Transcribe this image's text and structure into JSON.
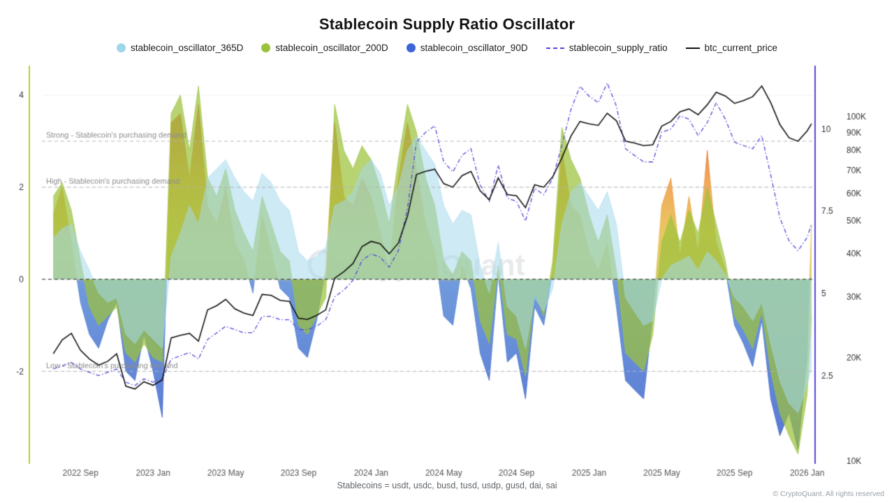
{
  "title": "Stablecoin Supply Ratio Oscillator",
  "watermark": "CryptoQuant",
  "legend": [
    {
      "label": "stablecoin_oscillator_365D",
      "color": "#9fd6ea",
      "marker": "dot"
    },
    {
      "label": "stablecoin_oscillator_200D",
      "color": "#9cc23c",
      "marker": "dot"
    },
    {
      "label": "stablecoin_oscillator_90D",
      "color": "#3d64d8",
      "marker": "dot"
    },
    {
      "label": "stablecoin_supply_ratio",
      "color": "#5346d6",
      "marker": "dash-dot-line"
    },
    {
      "label": "btc_current_price",
      "color": "#111111",
      "marker": "line"
    }
  ],
  "footer": {
    "note": "Stablecoins = usdt, usdc, busd, tusd, usdp, gusd, dai, sai",
    "copyright": "© CryptoQuant. All rights reserved"
  },
  "chart_data": {
    "type": "area",
    "subtype": "area oscillators + line overlays (combo, multi-axis)",
    "title": "Stablecoin Supply Ratio Oscillator",
    "x_unit": "decimal_year",
    "x_axis": {
      "range": [
        2022.49,
        2026.03
      ],
      "ticks": [
        {
          "pos": 2022.667,
          "label": "2022 Sep"
        },
        {
          "pos": 2023.0,
          "label": "2023 Jan"
        },
        {
          "pos": 2023.333,
          "label": "2023 May"
        },
        {
          "pos": 2023.667,
          "label": "2023 Sep"
        },
        {
          "pos": 2024.0,
          "label": "2024 Jan"
        },
        {
          "pos": 2024.333,
          "label": "2024 May"
        },
        {
          "pos": 2024.667,
          "label": "2024 Sep"
        },
        {
          "pos": 2025.0,
          "label": "2025 Jan"
        },
        {
          "pos": 2025.333,
          "label": "2025 May"
        },
        {
          "pos": 2025.667,
          "label": "2025 Sep"
        },
        {
          "pos": 2026.0,
          "label": "2026 Jan"
        }
      ]
    },
    "y_axes": {
      "oscillator": {
        "side": "left",
        "min": -3.95,
        "max": 4.55,
        "ticks": [
          4,
          2,
          0,
          -2
        ],
        "axis_line_color": "#b8cc35"
      },
      "supply_ratio": {
        "side": "right_inner",
        "min": -0.1,
        "max": 11.8,
        "ticks": [
          10,
          7.5,
          5,
          2.5
        ],
        "axis_line_color": "#5346d6"
      },
      "btc_price": {
        "side": "right_outer",
        "scale": "log",
        "min": 10000,
        "max": 137000,
        "ticks": [
          {
            "v": 100000,
            "label": "100K"
          },
          {
            "v": 90000,
            "label": "90K"
          },
          {
            "v": 80000,
            "label": "80K"
          },
          {
            "v": 70000,
            "label": "70K"
          },
          {
            "v": 60000,
            "label": "60K"
          },
          {
            "v": 50000,
            "label": "50K"
          },
          {
            "v": 40000,
            "label": "40K"
          },
          {
            "v": 30000,
            "label": "30K"
          },
          {
            "v": 20000,
            "label": "20K"
          },
          {
            "v": 10000,
            "label": "10K"
          }
        ]
      }
    },
    "annotations": [
      {
        "value": 3,
        "label": "Strong - Stablecoin's purchasing demand",
        "style": "dashed-gray"
      },
      {
        "value": 2,
        "label": "High - Stablecoin's purchasing demand",
        "style": "dashed-gray"
      },
      {
        "value": 0,
        "label": "",
        "style": "dashed-black"
      },
      {
        "value": -2,
        "label": "Low - Stablecoin's purchasing demand",
        "style": "dashed-gray"
      }
    ],
    "x": [
      2022.542,
      2022.583,
      2022.625,
      2022.667,
      2022.708,
      2022.75,
      2022.792,
      2022.833,
      2022.875,
      2022.917,
      2022.958,
      2023.0,
      2023.042,
      2023.083,
      2023.125,
      2023.167,
      2023.208,
      2023.25,
      2023.292,
      2023.333,
      2023.375,
      2023.417,
      2023.458,
      2023.5,
      2023.542,
      2023.583,
      2023.625,
      2023.667,
      2023.708,
      2023.75,
      2023.792,
      2023.833,
      2023.875,
      2023.917,
      2023.958,
      2024.0,
      2024.042,
      2024.083,
      2024.125,
      2024.167,
      2024.208,
      2024.25,
      2024.292,
      2024.333,
      2024.375,
      2024.417,
      2024.458,
      2024.5,
      2024.542,
      2024.583,
      2024.625,
      2024.667,
      2024.708,
      2024.75,
      2024.792,
      2024.833,
      2024.875,
      2024.917,
      2024.958,
      2025.0,
      2025.042,
      2025.083,
      2025.125,
      2025.167,
      2025.208,
      2025.25,
      2025.292,
      2025.333,
      2025.375,
      2025.417,
      2025.458,
      2025.5,
      2025.542,
      2025.583,
      2025.625,
      2025.667,
      2025.708,
      2025.75,
      2025.792,
      2025.833,
      2025.875,
      2025.917,
      2025.958,
      2026.0,
      2026.02
    ],
    "series": [
      {
        "name": "stablecoin_oscillator_90D",
        "type": "area",
        "axis": "oscillator",
        "opacity": 0.8,
        "color_scale": [
          [
            4.55,
            "#d8352c"
          ],
          [
            3.2,
            "#e2592b"
          ],
          [
            2.2,
            "#ee9030"
          ],
          [
            1.0,
            "#e5b93d"
          ],
          [
            0.05,
            "#d4bd4a"
          ],
          [
            -0.05,
            "#4d82d4"
          ],
          [
            -3.95,
            "#2d53c6"
          ]
        ],
        "values": [
          1.4,
          2.0,
          0.8,
          -0.5,
          -1.2,
          -1.5,
          -0.9,
          -0.5,
          -2.0,
          -2.2,
          -1.2,
          -2.0,
          -3.0,
          3.4,
          3.6,
          2.2,
          3.8,
          1.6,
          1.2,
          2.0,
          0.8,
          0.4,
          -0.3,
          1.4,
          0.6,
          -0.2,
          -0.4,
          -1.5,
          -1.7,
          -0.9,
          0.2,
          3.4,
          1.8,
          1.6,
          2.2,
          1.8,
          1.0,
          0.2,
          2.2,
          3.4,
          2.4,
          1.2,
          0.6,
          -0.8,
          -1.0,
          0.3,
          -0.2,
          -1.6,
          -2.2,
          0.1,
          -1.8,
          -1.6,
          -2.6,
          -0.6,
          -1.0,
          0.2,
          2.8,
          1.6,
          1.4,
          0.6,
          0.2,
          0.8,
          -0.6,
          -2.2,
          -2.4,
          -2.6,
          -0.8,
          1.6,
          2.2,
          0.5,
          1.8,
          0.6,
          2.8,
          0.8,
          0.2,
          -1.0,
          -1.4,
          -1.9,
          -0.9,
          -2.6,
          -3.4,
          -2.9,
          -3.7,
          -1.7,
          1.2
        ]
      },
      {
        "name": "stablecoin_oscillator_200D",
        "type": "area",
        "axis": "oscillator",
        "color": "#9cc23c",
        "opacity": 0.72,
        "values": [
          1.8,
          2.1,
          1.5,
          0.4,
          -0.6,
          -1.0,
          -0.8,
          -0.6,
          -1.6,
          -1.8,
          -1.4,
          -1.7,
          -1.8,
          3.6,
          4.0,
          2.8,
          4.2,
          2.2,
          1.8,
          2.4,
          1.5,
          1.0,
          0.6,
          1.8,
          1.2,
          0.6,
          0.4,
          -1.0,
          -1.2,
          -0.8,
          -0.4,
          3.8,
          2.8,
          2.4,
          2.9,
          2.6,
          2.0,
          1.2,
          2.6,
          3.8,
          3.2,
          2.2,
          1.6,
          0.4,
          0.1,
          0.6,
          0.4,
          -0.9,
          -1.4,
          0.3,
          -1.2,
          -1.3,
          -2.1,
          -0.3,
          -0.8,
          0.4,
          3.3,
          2.6,
          2.2,
          1.4,
          0.8,
          1.4,
          0.2,
          -1.6,
          -1.8,
          -2.0,
          -1.2,
          0.8,
          1.4,
          0.8,
          1.5,
          1.0,
          2.0,
          1.2,
          0.4,
          -0.8,
          -1.1,
          -1.5,
          -0.7,
          -2.0,
          -2.9,
          -3.4,
          -3.8,
          -2.5,
          -0.8
        ]
      },
      {
        "name": "stablecoin_oscillator_365D",
        "type": "area",
        "axis": "oscillator",
        "color": "#a5d8eb",
        "opacity": 0.55,
        "values": [
          0.9,
          1.1,
          1.2,
          0.6,
          0.2,
          -0.3,
          -0.5,
          -0.4,
          -1.2,
          -1.4,
          -1.1,
          -1.3,
          -1.5,
          0.5,
          1.0,
          1.6,
          1.2,
          2.2,
          2.4,
          2.6,
          2.2,
          1.9,
          1.7,
          2.3,
          2.1,
          1.7,
          1.5,
          0.6,
          0.4,
          0.5,
          0.7,
          1.6,
          1.7,
          1.9,
          2.4,
          2.6,
          2.3,
          1.6,
          2.0,
          2.8,
          3.1,
          2.8,
          2.5,
          1.6,
          1.2,
          1.5,
          1.4,
          0.3,
          -0.3,
          0.8,
          -0.6,
          -0.8,
          -1.5,
          -0.4,
          -0.7,
          -0.2,
          1.2,
          1.9,
          2.1,
          1.8,
          1.5,
          1.9,
          1.2,
          -0.4,
          -0.7,
          -1.0,
          -0.9,
          0.0,
          0.3,
          0.4,
          0.5,
          0.2,
          0.6,
          0.4,
          0.1,
          -0.4,
          -0.6,
          -0.9,
          -0.5,
          -1.4,
          -2.2,
          -2.7,
          -2.9,
          -2.3,
          -1.9
        ]
      },
      {
        "name": "stablecoin_supply_ratio",
        "type": "line",
        "axis": "supply_ratio",
        "color": "#5346d6",
        "dash": "dash-dot",
        "values": [
          2.7,
          2.8,
          2.9,
          2.7,
          2.6,
          2.5,
          2.6,
          2.7,
          2.3,
          2.2,
          2.4,
          2.3,
          2.4,
          3.0,
          3.1,
          3.2,
          3.0,
          3.6,
          3.8,
          4.0,
          3.9,
          3.8,
          3.8,
          4.3,
          4.3,
          4.2,
          4.2,
          3.9,
          3.9,
          4.0,
          4.2,
          4.9,
          5.1,
          5.4,
          6.0,
          6.2,
          6.1,
          5.8,
          6.3,
          7.6,
          9.6,
          9.9,
          10.1,
          9.0,
          8.7,
          9.2,
          9.4,
          8.3,
          7.8,
          8.9,
          7.9,
          7.8,
          7.2,
          8.2,
          8.0,
          8.5,
          9.5,
          10.6,
          11.3,
          11.0,
          10.8,
          11.4,
          10.7,
          9.4,
          9.2,
          9.0,
          9.0,
          9.9,
          10.0,
          10.4,
          10.3,
          9.8,
          10.2,
          10.8,
          10.3,
          9.6,
          9.5,
          9.4,
          9.8,
          8.6,
          7.3,
          6.6,
          6.3,
          6.7,
          7.1
        ]
      },
      {
        "name": "btc_current_price",
        "type": "line",
        "axis": "btc_price",
        "color": "#111111",
        "dash": "solid",
        "values": [
          20500,
          22500,
          23500,
          21000,
          19800,
          19000,
          19500,
          20500,
          16500,
          16200,
          17000,
          16600,
          17200,
          22800,
          23200,
          23500,
          22300,
          27500,
          28300,
          29500,
          27700,
          26900,
          26500,
          30500,
          30300,
          29300,
          29100,
          26000,
          25800,
          26500,
          27500,
          34000,
          35500,
          37500,
          42000,
          43500,
          42800,
          40000,
          43000,
          51500,
          68000,
          69500,
          70500,
          64000,
          62500,
          67500,
          69500,
          61000,
          57500,
          66500,
          59500,
          59000,
          54500,
          63500,
          62500,
          67000,
          76000,
          88000,
          97000,
          95500,
          94500,
          102500,
          97500,
          85000,
          84000,
          82500,
          83000,
          94000,
          97000,
          103500,
          105500,
          101500,
          108500,
          118000,
          115000,
          109500,
          111500,
          114500,
          123000,
          110000,
          95000,
          87000,
          85000,
          91000,
          95500
        ]
      }
    ]
  }
}
